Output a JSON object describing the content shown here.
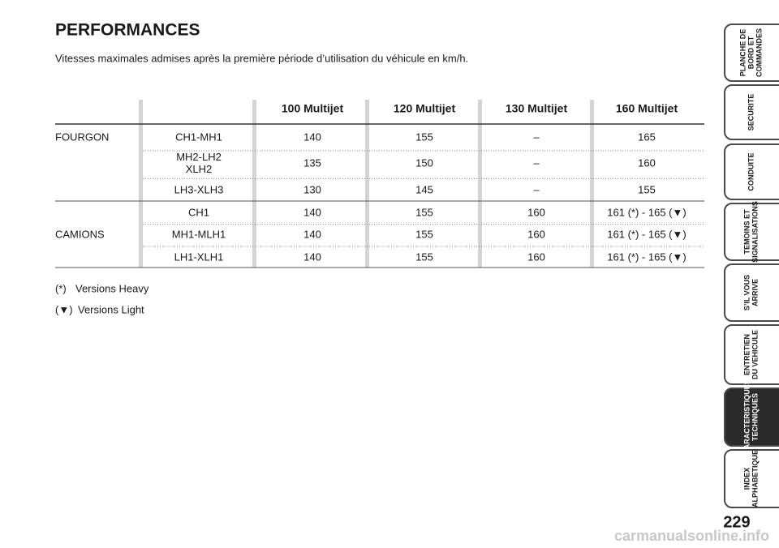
{
  "header": {
    "title": "PERFORMANCES",
    "subtitle": "Vitesses maximales admises après la première période d’utilisation du véhicule en km/h."
  },
  "table": {
    "columns": [
      "100 Multijet",
      "120 Multijet",
      "130 Multijet",
      "160 Multijet"
    ],
    "groups": [
      {
        "label": "FOURGON",
        "rows": [
          {
            "model": [
              "CH1-MH1"
            ],
            "values": [
              "140",
              "155",
              "–",
              "165"
            ]
          },
          {
            "model": [
              "MH2-LH2",
              "XLH2"
            ],
            "values": [
              "135",
              "150",
              "–",
              "160"
            ]
          },
          {
            "model": [
              "LH3-XLH3"
            ],
            "values": [
              "130",
              "145",
              "–",
              "155"
            ]
          }
        ]
      },
      {
        "label": "CAMIONS",
        "rows": [
          {
            "model": [
              "CH1"
            ],
            "values": [
              "140",
              "155",
              "160",
              "161 (*) - 165 (▼)"
            ]
          },
          {
            "model": [
              "MH1-MLH1"
            ],
            "values": [
              "140",
              "155",
              "160",
              "161 (*) - 165 (▼)"
            ]
          },
          {
            "model": [
              "LH1-XLH1"
            ],
            "values": [
              "140",
              "155",
              "160",
              "161 (*) - 165 (▼)"
            ]
          }
        ]
      }
    ]
  },
  "footnotes": [
    {
      "marker": "(*)",
      "text": "Versions Heavy"
    },
    {
      "marker": "(▼)",
      "text": "Versions Light"
    }
  ],
  "sidebar": {
    "tabs": [
      {
        "lines": [
          "PLANCHE DE",
          "BORD ET",
          "COMMANDES"
        ],
        "active": false
      },
      {
        "lines": [
          "SECURITE"
        ],
        "active": false
      },
      {
        "lines": [
          "CONDUITE"
        ],
        "active": false
      },
      {
        "lines": [
          "TEMOINS ET",
          "SIGNALISATIONS"
        ],
        "active": false
      },
      {
        "lines": [
          "S’IL VOUS",
          "ARRIVE"
        ],
        "active": false
      },
      {
        "lines": [
          "ENTRETIEN",
          "DU VEHICULE"
        ],
        "active": false
      },
      {
        "lines": [
          "CARACTERISTIQUES",
          "TECHNIQUES"
        ],
        "active": true
      },
      {
        "lines": [
          "INDEX",
          "ALPHABETIQUE"
        ],
        "active": false
      }
    ]
  },
  "page_number": "229",
  "watermark": "carmanualsonline.info"
}
